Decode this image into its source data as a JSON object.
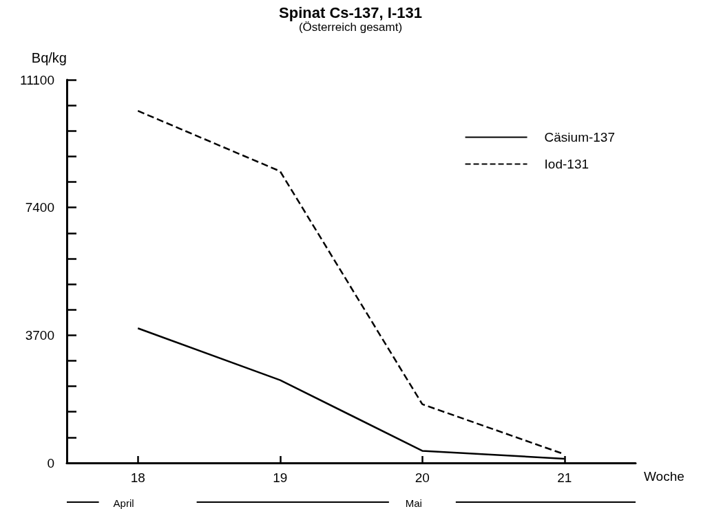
{
  "chart_data": {
    "type": "line",
    "title": "Spinat Cs-137, I-131",
    "subtitle": "(Österreich gesamt)",
    "xlabel": "Woche",
    "ylabel": "Bq/kg",
    "x": [
      18,
      19,
      20,
      21
    ],
    "series": [
      {
        "name": "Cäsium-137",
        "color": "#000000",
        "line_style": "solid",
        "values": [
          3900,
          2400,
          350,
          120
        ]
      },
      {
        "name": "Iod-131",
        "color": "#000000",
        "line_style": "dashed",
        "values": [
          10200,
          8450,
          1700,
          250
        ]
      }
    ],
    "xlim": [
      17.5,
      21.5
    ],
    "xticks": [
      18,
      19,
      20,
      21
    ],
    "ylim": [
      0,
      11100
    ],
    "yticks": [
      0,
      {
        "value": 740,
        "label": null
      },
      {
        "value": 1480,
        "label": null
      },
      {
        "value": 2220,
        "label": null
      },
      {
        "value": 2960,
        "label": null
      },
      3700,
      {
        "value": 4440,
        "label": null
      },
      {
        "value": 5180,
        "label": null
      },
      {
        "value": 5920,
        "label": null
      },
      {
        "value": 6660,
        "label": null
      },
      7400,
      {
        "value": 8140,
        "label": null
      },
      {
        "value": 8880,
        "label": null
      },
      {
        "value": 9620,
        "label": null
      },
      {
        "value": 10360,
        "label": null
      },
      11100
    ],
    "annotations": [
      "April",
      "Mai"
    ],
    "marker": "none",
    "grid": false,
    "legend": "top right"
  }
}
